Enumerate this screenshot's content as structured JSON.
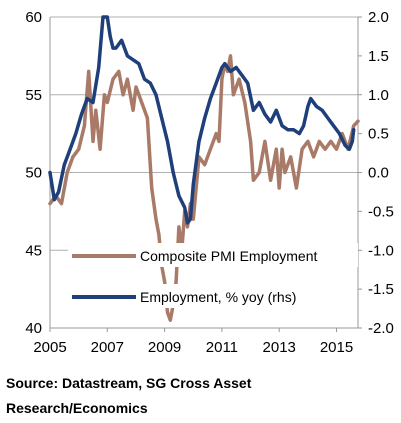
{
  "chart_data": {
    "type": "line",
    "title": "",
    "xlabel": "",
    "ylabel": "",
    "x_ticks": [
      "2005",
      "2007",
      "2009",
      "2011",
      "2013",
      "2015"
    ],
    "xlim": [
      2005.0,
      2015.75
    ],
    "y_left_ticks": [
      "60",
      "55",
      "50",
      "45",
      "40"
    ],
    "ylim_left": [
      40,
      60
    ],
    "y_right_ticks": [
      "2.0",
      "1.5",
      "1.0",
      "0.5",
      "0.0",
      "-0.5",
      "-1.0",
      "-1.5",
      "-2.0"
    ],
    "ylim_right": [
      -2.0,
      2.0
    ],
    "grid": "horizontal",
    "legend_position": "bottom-center",
    "series": [
      {
        "name": "Composite PMI Employment",
        "axis": "left",
        "color": "#a87a67",
        "x": [
          2005.0,
          2005.2,
          2005.4,
          2005.6,
          2005.8,
          2006.0,
          2006.2,
          2006.35,
          2006.5,
          2006.6,
          2006.75,
          2006.9,
          2007.0,
          2007.2,
          2007.4,
          2007.55,
          2007.7,
          2007.9,
          2008.0,
          2008.2,
          2008.4,
          2008.55,
          2008.7,
          2008.8,
          2008.9,
          2009.0,
          2009.1,
          2009.2,
          2009.3,
          2009.4,
          2009.5,
          2009.6,
          2009.7,
          2009.8,
          2009.9,
          2010.0,
          2010.2,
          2010.4,
          2010.6,
          2010.8,
          2010.9,
          2011.0,
          2011.1,
          2011.2,
          2011.3,
          2011.4,
          2011.6,
          2011.8,
          2012.0,
          2012.1,
          2012.3,
          2012.5,
          2012.7,
          2012.9,
          2013.0,
          2013.1,
          2013.2,
          2013.4,
          2013.6,
          2013.8,
          2014.0,
          2014.2,
          2014.4,
          2014.6,
          2014.8,
          2015.0,
          2015.2,
          2015.4,
          2015.6,
          2015.75
        ],
        "values": [
          48.0,
          48.5,
          48.0,
          50.0,
          51.0,
          51.5,
          53.0,
          56.5,
          52.0,
          54.0,
          51.5,
          55.0,
          54.5,
          56.0,
          56.5,
          55.0,
          56.0,
          54.0,
          55.5,
          54.5,
          53.5,
          49.0,
          47.0,
          46.0,
          44.0,
          43.0,
          41.0,
          40.5,
          41.5,
          43.0,
          46.5,
          45.0,
          47.5,
          46.5,
          48.0,
          47.0,
          51.0,
          50.5,
          51.5,
          52.5,
          52.0,
          56.0,
          57.0,
          56.5,
          57.5,
          55.0,
          56.0,
          54.5,
          52.0,
          49.5,
          50.0,
          52.0,
          49.5,
          51.5,
          49.0,
          51.5,
          50.0,
          51.0,
          49.0,
          51.5,
          52.0,
          51.0,
          52.0,
          51.5,
          52.0,
          51.5,
          52.5,
          51.5,
          53.0,
          53.3
        ]
      },
      {
        "name": "Employment, % yoy (rhs)",
        "axis": "right",
        "color": "#1f3f7a",
        "x": [
          2005.0,
          2005.15,
          2005.3,
          2005.5,
          2005.7,
          2005.9,
          2006.1,
          2006.3,
          2006.5,
          2006.7,
          2006.85,
          2007.0,
          2007.1,
          2007.2,
          2007.3,
          2007.5,
          2007.7,
          2007.9,
          2008.1,
          2008.3,
          2008.5,
          2008.7,
          2008.9,
          2009.1,
          2009.3,
          2009.5,
          2009.7,
          2009.8,
          2009.9,
          2010.0,
          2010.2,
          2010.4,
          2010.6,
          2010.8,
          2011.0,
          2011.1,
          2011.3,
          2011.5,
          2011.7,
          2011.9,
          2012.1,
          2012.3,
          2012.5,
          2012.7,
          2012.9,
          2013.1,
          2013.3,
          2013.5,
          2013.7,
          2013.85,
          2014.0,
          2014.1,
          2014.3,
          2014.5,
          2014.7,
          2014.9,
          2015.1,
          2015.3,
          2015.45,
          2015.55,
          2015.6
        ],
        "values": [
          0.0,
          -0.35,
          -0.25,
          0.1,
          0.3,
          0.5,
          0.75,
          0.95,
          0.9,
          1.35,
          2.0,
          2.0,
          1.75,
          1.6,
          1.6,
          1.7,
          1.5,
          1.45,
          1.4,
          1.2,
          1.15,
          1.0,
          0.7,
          0.4,
          0.0,
          -0.3,
          -0.45,
          -0.65,
          -0.6,
          -0.15,
          0.4,
          0.7,
          0.95,
          1.15,
          1.35,
          1.4,
          1.3,
          1.35,
          1.25,
          1.15,
          0.8,
          0.9,
          0.75,
          0.65,
          0.8,
          0.6,
          0.55,
          0.55,
          0.5,
          0.6,
          0.85,
          0.95,
          0.85,
          0.8,
          0.7,
          0.6,
          0.5,
          0.35,
          0.3,
          0.4,
          0.55
        ]
      }
    ]
  },
  "source_note": "Source: Datastream, SG Cross Asset Research/Economics"
}
